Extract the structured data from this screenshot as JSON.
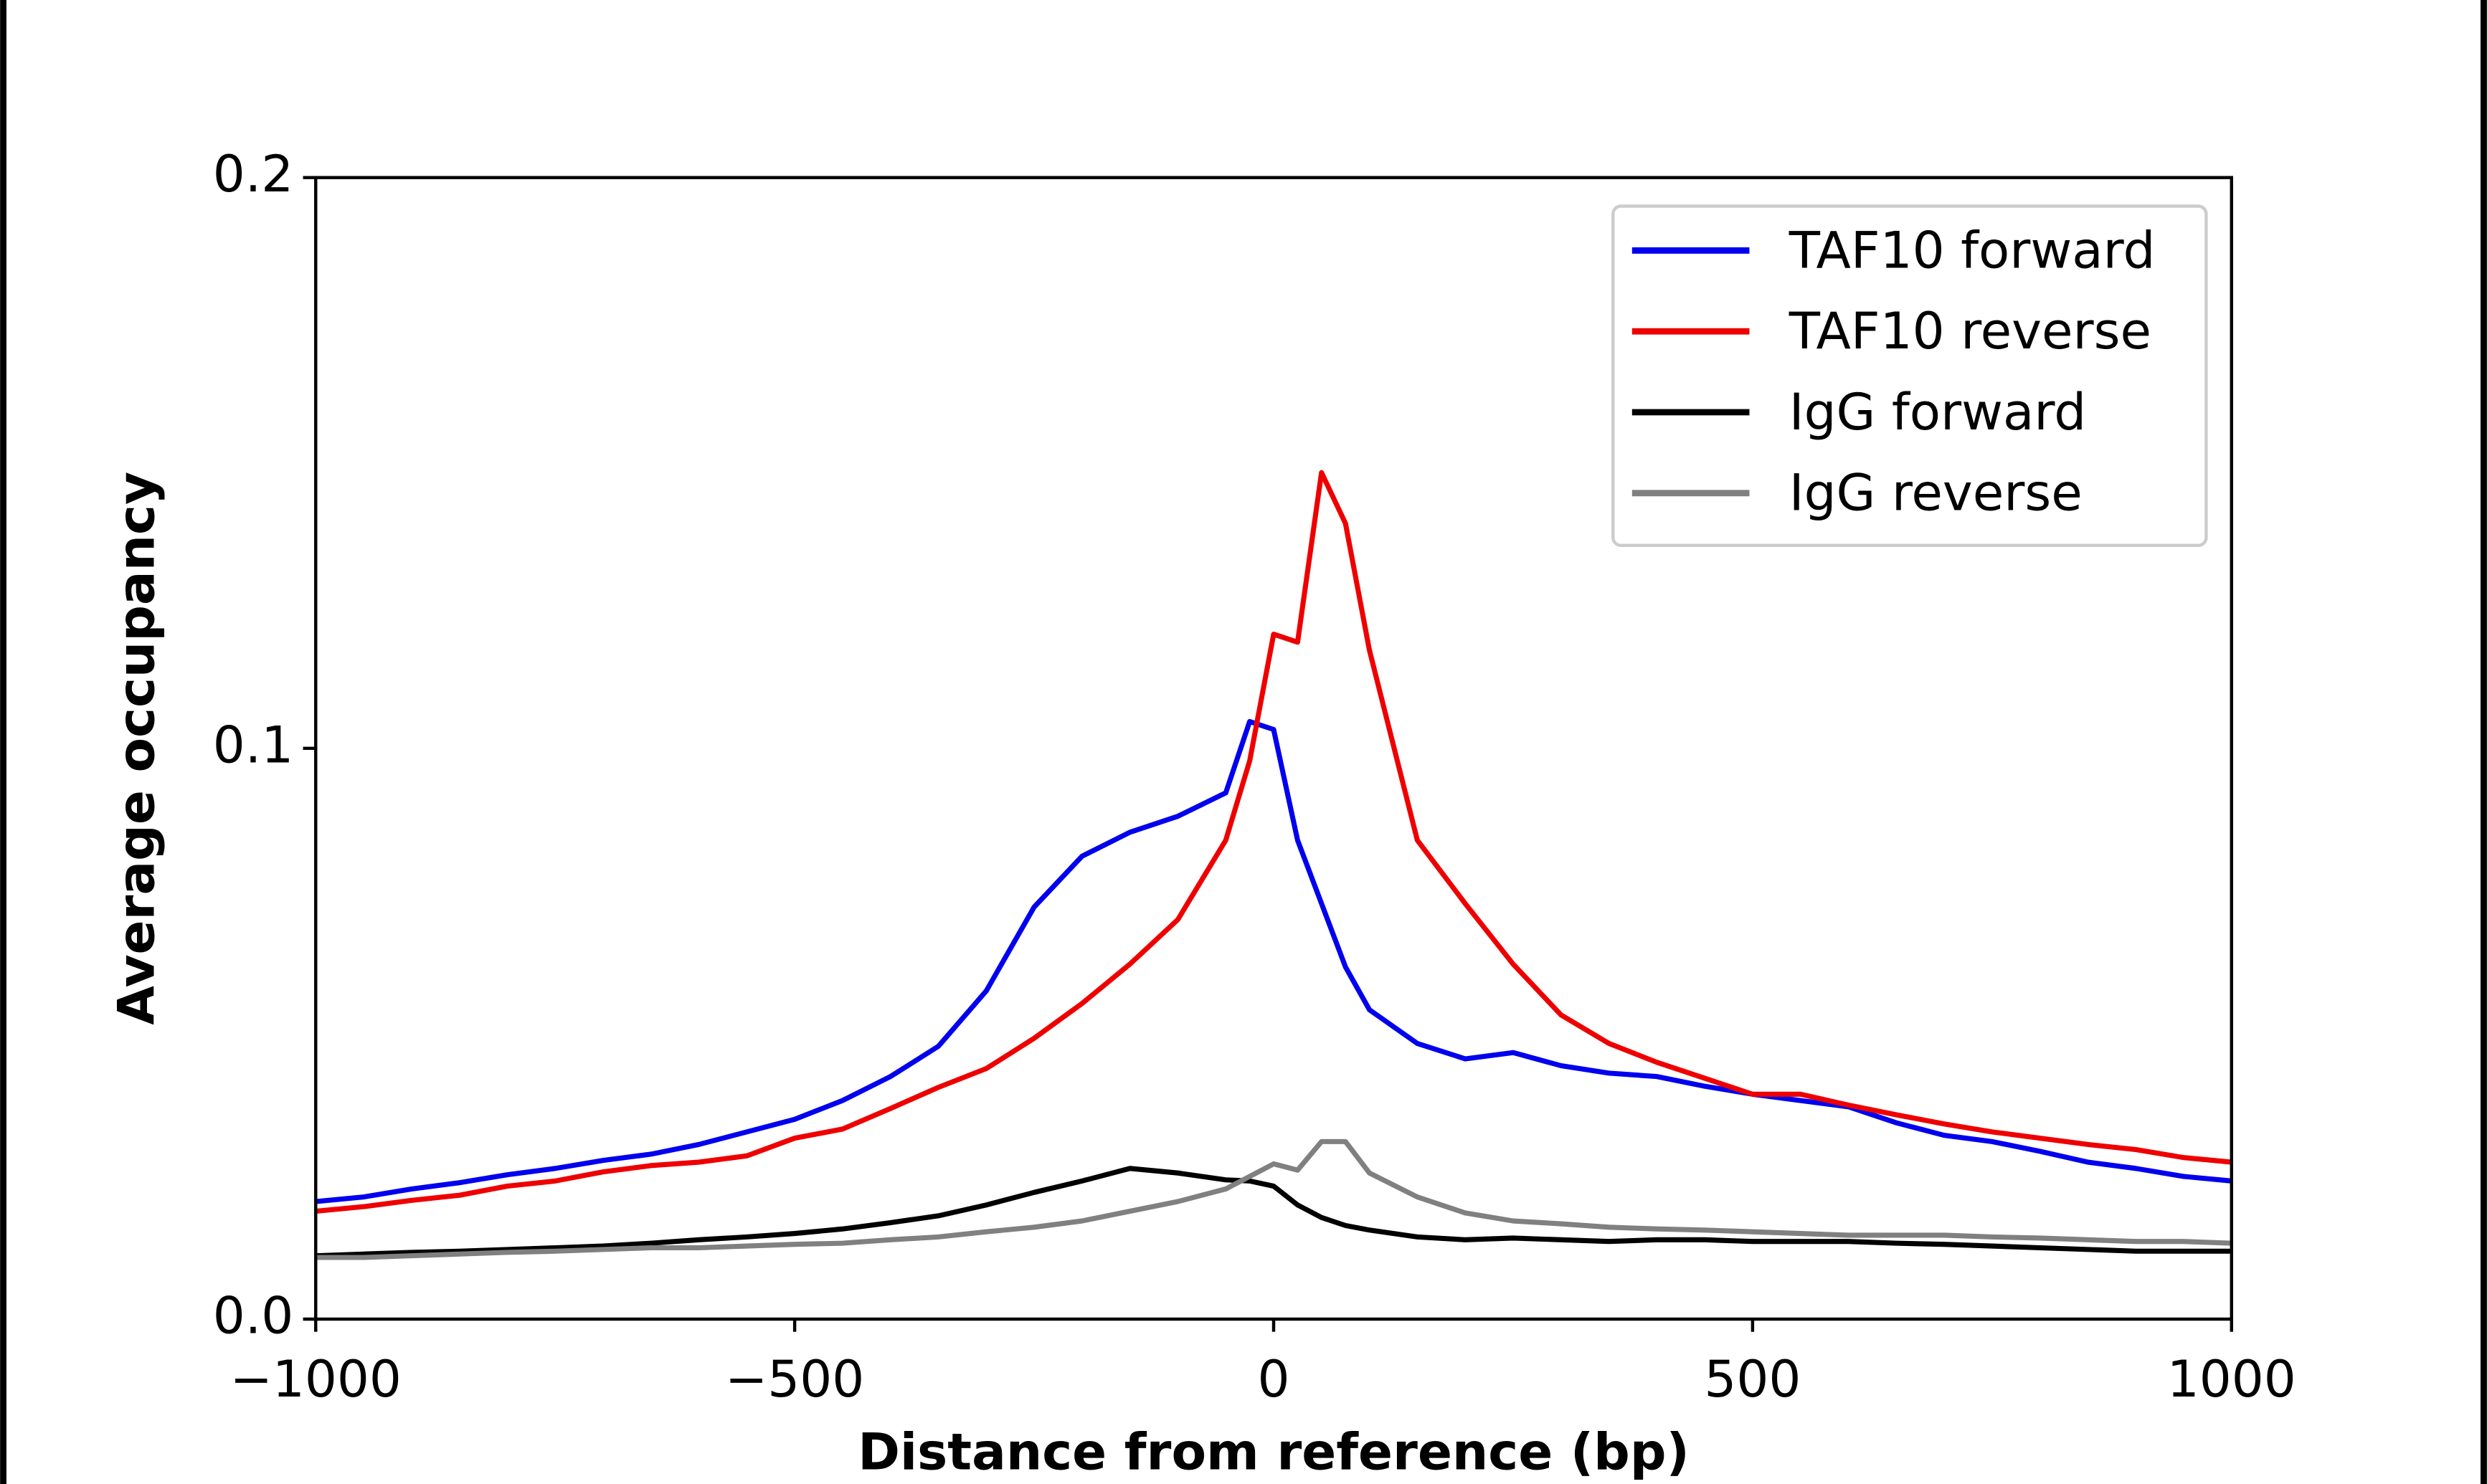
{
  "chart_data": {
    "type": "line",
    "xlabel": "Distance from reference (bp)",
    "ylabel": "Average occupancy",
    "xlim": [
      -1000,
      1000
    ],
    "ylim": [
      0,
      0.2
    ],
    "xticks": [
      {
        "value": -1000,
        "label": "−1000"
      },
      {
        "value": -500,
        "label": "−500"
      },
      0,
      500,
      1000
    ],
    "yticks": [
      {
        "value": 0,
        "label": "0.0"
      },
      0.1,
      0.2
    ],
    "legend": "upper right",
    "x": [
      -1000,
      -950,
      -900,
      -850,
      -800,
      -750,
      -700,
      -650,
      -600,
      -550,
      -500,
      -450,
      -400,
      -350,
      -300,
      -250,
      -200,
      -150,
      -100,
      -50,
      -25,
      0,
      25,
      50,
      75,
      100,
      150,
      200,
      250,
      300,
      350,
      400,
      450,
      500,
      550,
      600,
      650,
      700,
      750,
      800,
      850,
      900,
      950,
      1000
    ],
    "series": [
      {
        "name": "TAF10 forward",
        "color": "#0000ee",
        "values": [
          0.0206,
          0.0214,
          0.0228,
          0.0239,
          0.0253,
          0.0264,
          0.0278,
          0.0289,
          0.0306,
          0.0328,
          0.035,
          0.0383,
          0.0425,
          0.0478,
          0.0575,
          0.0722,
          0.0811,
          0.0853,
          0.0881,
          0.0922,
          0.1047,
          0.1033,
          0.0839,
          0.0728,
          0.0617,
          0.0542,
          0.0483,
          0.0456,
          0.0467,
          0.0444,
          0.0431,
          0.0425,
          0.0408,
          0.0394,
          0.0383,
          0.0372,
          0.0344,
          0.0322,
          0.0311,
          0.0294,
          0.0275,
          0.0264,
          0.025,
          0.0242
        ]
      },
      {
        "name": "TAF10 reverse",
        "color": "#ee0000",
        "values": [
          0.0189,
          0.0197,
          0.0208,
          0.0217,
          0.0233,
          0.0242,
          0.0258,
          0.0269,
          0.0275,
          0.0286,
          0.0317,
          0.0333,
          0.0369,
          0.0406,
          0.0439,
          0.0492,
          0.0553,
          0.0622,
          0.07,
          0.0839,
          0.0978,
          0.12,
          0.1186,
          0.1483,
          0.1394,
          0.1172,
          0.0839,
          0.0728,
          0.0622,
          0.0533,
          0.0483,
          0.045,
          0.0422,
          0.0394,
          0.0394,
          0.0375,
          0.0358,
          0.0342,
          0.0328,
          0.0317,
          0.0306,
          0.0297,
          0.0283,
          0.0275
        ]
      },
      {
        "name": "IgG forward",
        "color": "#000000",
        "values": [
          0.0111,
          0.0114,
          0.0117,
          0.0119,
          0.0122,
          0.0125,
          0.0128,
          0.0133,
          0.0139,
          0.0144,
          0.015,
          0.0158,
          0.0169,
          0.0181,
          0.02,
          0.0222,
          0.0242,
          0.0264,
          0.0256,
          0.0244,
          0.0242,
          0.0233,
          0.02,
          0.0178,
          0.0164,
          0.0156,
          0.0144,
          0.0139,
          0.0142,
          0.0139,
          0.0136,
          0.0139,
          0.0139,
          0.0136,
          0.0136,
          0.0136,
          0.0133,
          0.0131,
          0.0128,
          0.0125,
          0.0122,
          0.0119,
          0.0119,
          0.0119
        ]
      },
      {
        "name": "IgG reverse",
        "color": "#808080",
        "values": [
          0.0108,
          0.0108,
          0.0111,
          0.0114,
          0.0117,
          0.0119,
          0.0122,
          0.0125,
          0.0125,
          0.0128,
          0.0131,
          0.0133,
          0.0139,
          0.0144,
          0.0153,
          0.0161,
          0.0172,
          0.0189,
          0.0206,
          0.0228,
          0.025,
          0.0272,
          0.0261,
          0.0311,
          0.0311,
          0.0256,
          0.0214,
          0.0186,
          0.0172,
          0.0167,
          0.0161,
          0.0158,
          0.0156,
          0.0153,
          0.015,
          0.0147,
          0.0147,
          0.0147,
          0.0144,
          0.0142,
          0.0139,
          0.0136,
          0.0136,
          0.0133
        ]
      }
    ]
  }
}
